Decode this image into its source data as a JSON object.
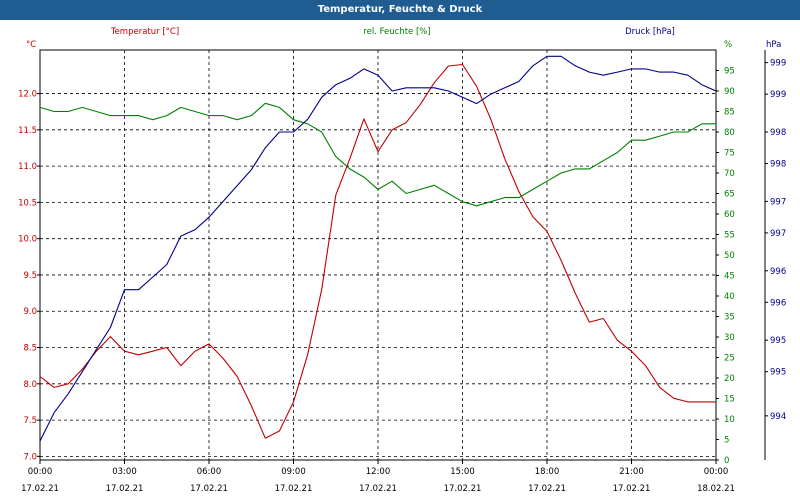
{
  "window": {
    "title": "Temperatur, Feuchte & Druck"
  },
  "chart_data": {
    "type": "line",
    "title": "Temperatur, Feuchte & Druck",
    "grid": true,
    "x_ticks": [
      {
        "time": "00:00",
        "date": "17.02.21"
      },
      {
        "time": "03:00",
        "date": "17.02.21"
      },
      {
        "time": "06:00",
        "date": "17.02.21"
      },
      {
        "time": "09:00",
        "date": "17.02.21"
      },
      {
        "time": "12:00",
        "date": "17.02.21"
      },
      {
        "time": "15:00",
        "date": "17.02.21"
      },
      {
        "time": "18:00",
        "date": "17.02.21"
      },
      {
        "time": "21:00",
        "date": "17.02.21"
      },
      {
        "time": "00:00",
        "date": "18.02.21"
      }
    ],
    "axes": {
      "temperature": {
        "label": "Temperatur [°C]",
        "unit": "°C",
        "color": "#c00000",
        "range": [
          6.95,
          12.6
        ],
        "ticks": [
          "7.0",
          "7.5",
          "8.0",
          "8.5",
          "9.0",
          "9.5",
          "10.0",
          "10.5",
          "11.0",
          "11.5",
          "12.0"
        ]
      },
      "humidity": {
        "label": "rel. Feuchte [%]",
        "unit": "%",
        "color": "#008000",
        "range": [
          0,
          100
        ],
        "ticks": [
          "0",
          "5",
          "10",
          "15",
          "20",
          "25",
          "30",
          "35",
          "40",
          "45",
          "50",
          "55",
          "60",
          "65",
          "70",
          "75",
          "80",
          "85",
          "90",
          "95"
        ]
      },
      "pressure": {
        "label": "Druck [hPa]",
        "unit": "hPa",
        "color": "#00008b",
        "range": [
          993.1,
          999.6
        ],
        "ticks": [
          {
            "v": 993.8,
            "t": "994"
          },
          {
            "v": 994.5,
            "t": "995"
          },
          {
            "v": 995.0,
            "t": "995"
          },
          {
            "v": 995.6,
            "t": "996"
          },
          {
            "v": 996.1,
            "t": "996"
          },
          {
            "v": 996.7,
            "t": "997"
          },
          {
            "v": 997.2,
            "t": "997"
          },
          {
            "v": 997.8,
            "t": "998"
          },
          {
            "v": 998.3,
            "t": "998"
          },
          {
            "v": 998.9,
            "t": "999"
          },
          {
            "v": 999.4,
            "t": "999"
          }
        ]
      }
    },
    "series": [
      {
        "name": "Temperatur [°C]",
        "axis": "temperature",
        "color": "#c00000",
        "x": [
          0,
          0.5,
          1,
          1.5,
          2,
          2.5,
          3,
          3.5,
          4,
          4.5,
          5,
          5.5,
          6,
          6.5,
          7,
          7.5,
          8,
          8.5,
          9,
          9.5,
          10,
          10.5,
          11,
          11.5,
          12,
          12.5,
          13,
          13.5,
          14,
          14.5,
          15,
          15.5,
          16,
          16.5,
          17,
          17.5,
          18,
          18.5,
          19,
          19.5,
          20,
          20.5,
          21,
          21.5,
          22,
          22.5,
          23,
          23.5,
          24
        ],
        "values": [
          8.1,
          7.95,
          8.0,
          8.2,
          8.45,
          8.65,
          8.45,
          8.4,
          8.45,
          8.5,
          8.25,
          8.45,
          8.55,
          8.35,
          8.1,
          7.7,
          7.25,
          7.35,
          7.75,
          8.4,
          9.3,
          10.6,
          11.1,
          11.65,
          11.2,
          11.5,
          11.6,
          11.85,
          12.15,
          12.38,
          12.4,
          12.1,
          11.65,
          11.1,
          10.65,
          10.3,
          10.1,
          9.7,
          9.25,
          8.85,
          8.9,
          8.6,
          8.45,
          8.25,
          7.95,
          7.8,
          7.75,
          7.75,
          7.75
        ]
      },
      {
        "name": "rel. Feuchte [%]",
        "axis": "humidity",
        "color": "#008000",
        "x": [
          0,
          0.5,
          1,
          1.5,
          2,
          2.5,
          3,
          3.5,
          4,
          4.5,
          5,
          5.5,
          6,
          6.5,
          7,
          7.5,
          8,
          8.5,
          9,
          9.5,
          10,
          10.5,
          11,
          11.5,
          12,
          12.5,
          13,
          13.5,
          14,
          14.5,
          15,
          15.5,
          16,
          16.5,
          17,
          17.5,
          18,
          18.5,
          19,
          19.5,
          20,
          20.5,
          21,
          21.5,
          22,
          22.5,
          23,
          23.5,
          24
        ],
        "values": [
          86,
          85,
          85,
          86,
          85,
          84,
          84,
          84,
          83,
          84,
          86,
          85,
          84,
          84,
          83,
          84,
          87,
          86,
          83,
          82,
          80,
          74,
          71,
          69,
          66,
          68,
          65,
          66,
          67,
          65,
          63,
          62,
          63,
          64,
          64,
          66,
          68,
          70,
          71,
          71,
          73,
          75,
          78,
          78,
          79,
          80,
          80,
          82,
          82
        ]
      },
      {
        "name": "Druck [hPa]",
        "axis": "pressure",
        "color": "#00008b",
        "x": [
          0,
          0.5,
          1,
          1.5,
          2,
          2.5,
          3,
          3.5,
          4,
          4.5,
          5,
          5.5,
          6,
          6.5,
          7,
          7.5,
          8,
          8.5,
          9,
          9.5,
          10,
          10.5,
          11,
          11.5,
          12,
          12.5,
          13,
          13.5,
          14,
          14.5,
          15,
          15.5,
          16,
          16.5,
          17,
          17.5,
          18,
          18.5,
          19,
          19.5,
          20,
          20.5,
          21,
          21.5,
          22,
          22.5,
          23,
          23.5,
          24
        ],
        "values": [
          993.4,
          993.85,
          994.15,
          994.5,
          994.85,
          995.2,
          995.8,
          995.8,
          996.0,
          996.2,
          996.65,
          996.75,
          996.95,
          997.2,
          997.45,
          997.7,
          998.05,
          998.3,
          998.3,
          998.5,
          998.85,
          999.05,
          999.15,
          999.3,
          999.2,
          998.95,
          999.0,
          999.0,
          999.0,
          998.95,
          998.85,
          998.75,
          998.9,
          999.0,
          999.1,
          999.35,
          999.5,
          999.5,
          999.35,
          999.25,
          999.2,
          999.25,
          999.3,
          999.3,
          999.25,
          999.25,
          999.2,
          999.05,
          998.95
        ]
      }
    ]
  }
}
